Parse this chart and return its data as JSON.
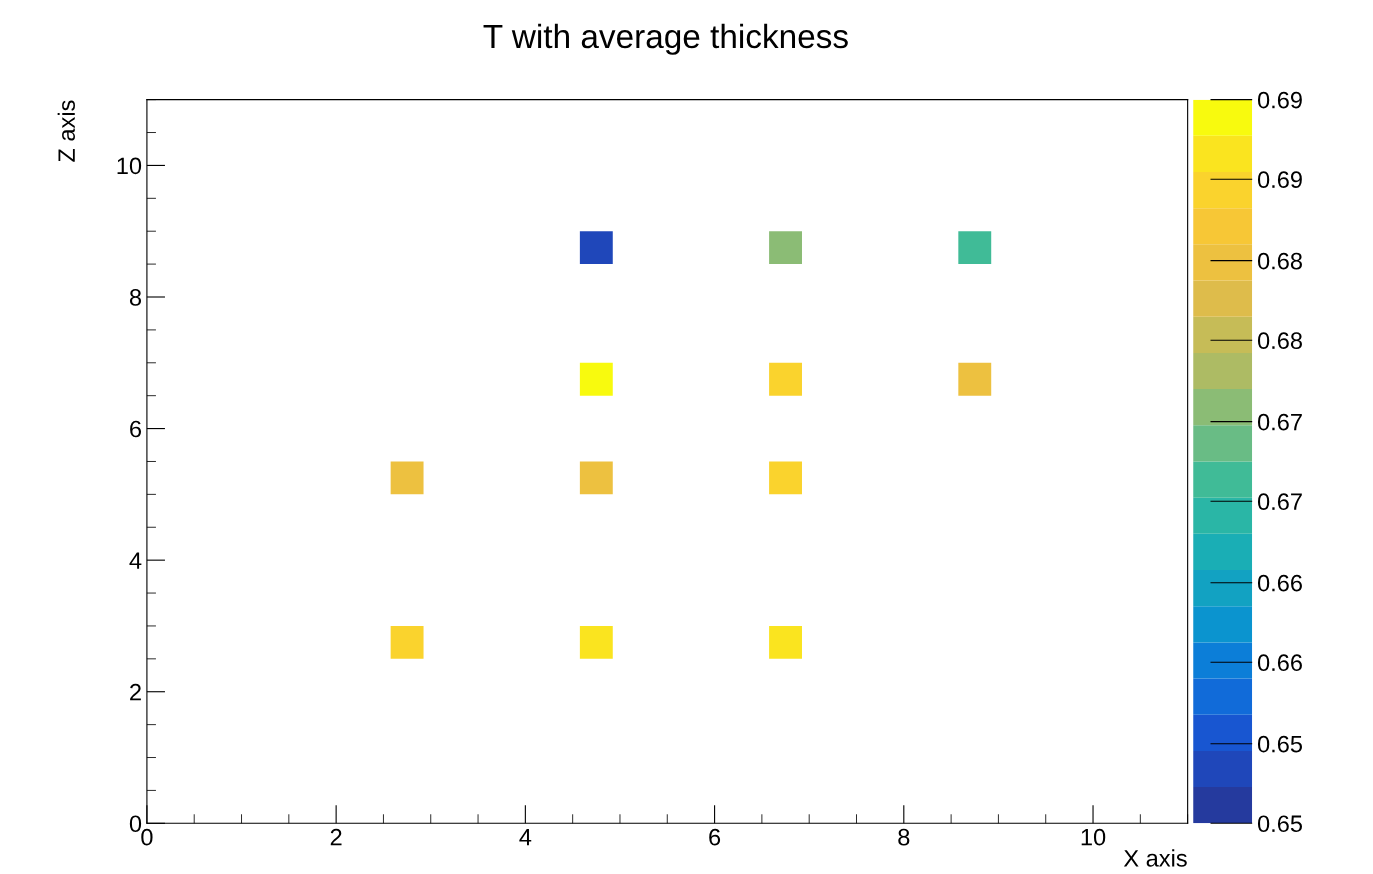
{
  "chart_data": {
    "type": "scatter",
    "title": "T with average thickness",
    "xlabel": "X axis",
    "ylabel": "Z axis",
    "marker": "square",
    "x": [
      4.75,
      6.75,
      8.75,
      4.75,
      6.75,
      8.75,
      2.75,
      4.75,
      6.75,
      2.75,
      4.75,
      6.75
    ],
    "values": [
      8.75,
      8.75,
      8.75,
      6.75,
      6.75,
      6.75,
      5.25,
      5.25,
      5.25,
      2.75,
      2.75,
      2.75
    ],
    "cvalues": [
      0.653,
      0.673,
      0.669,
      0.689,
      0.684,
      0.681,
      0.681,
      0.681,
      0.684,
      0.684,
      0.686,
      0.686
    ],
    "xlim": [
      0,
      11
    ],
    "ylim": [
      0,
      11
    ],
    "xticks": [
      0,
      2,
      4,
      6,
      8,
      10
    ],
    "yticks": [
      0,
      2,
      4,
      6,
      8,
      10
    ],
    "clim": [
      0.65,
      0.69
    ],
    "cticks": [
      {
        "value": 0.65,
        "label": "0.65"
      },
      {
        "value": 0.6544,
        "label": "0.65"
      },
      {
        "value": 0.6589,
        "label": "0.66"
      },
      {
        "value": 0.6633,
        "label": "0.66"
      },
      {
        "value": 0.6678,
        "label": "0.67"
      },
      {
        "value": 0.6722,
        "label": "0.67"
      },
      {
        "value": 0.6767,
        "label": "0.68"
      },
      {
        "value": 0.6811,
        "label": "0.68"
      },
      {
        "value": 0.6856,
        "label": "0.69"
      },
      {
        "value": 0.69,
        "label": "0.69"
      }
    ],
    "grid": false,
    "legend": false
  }
}
